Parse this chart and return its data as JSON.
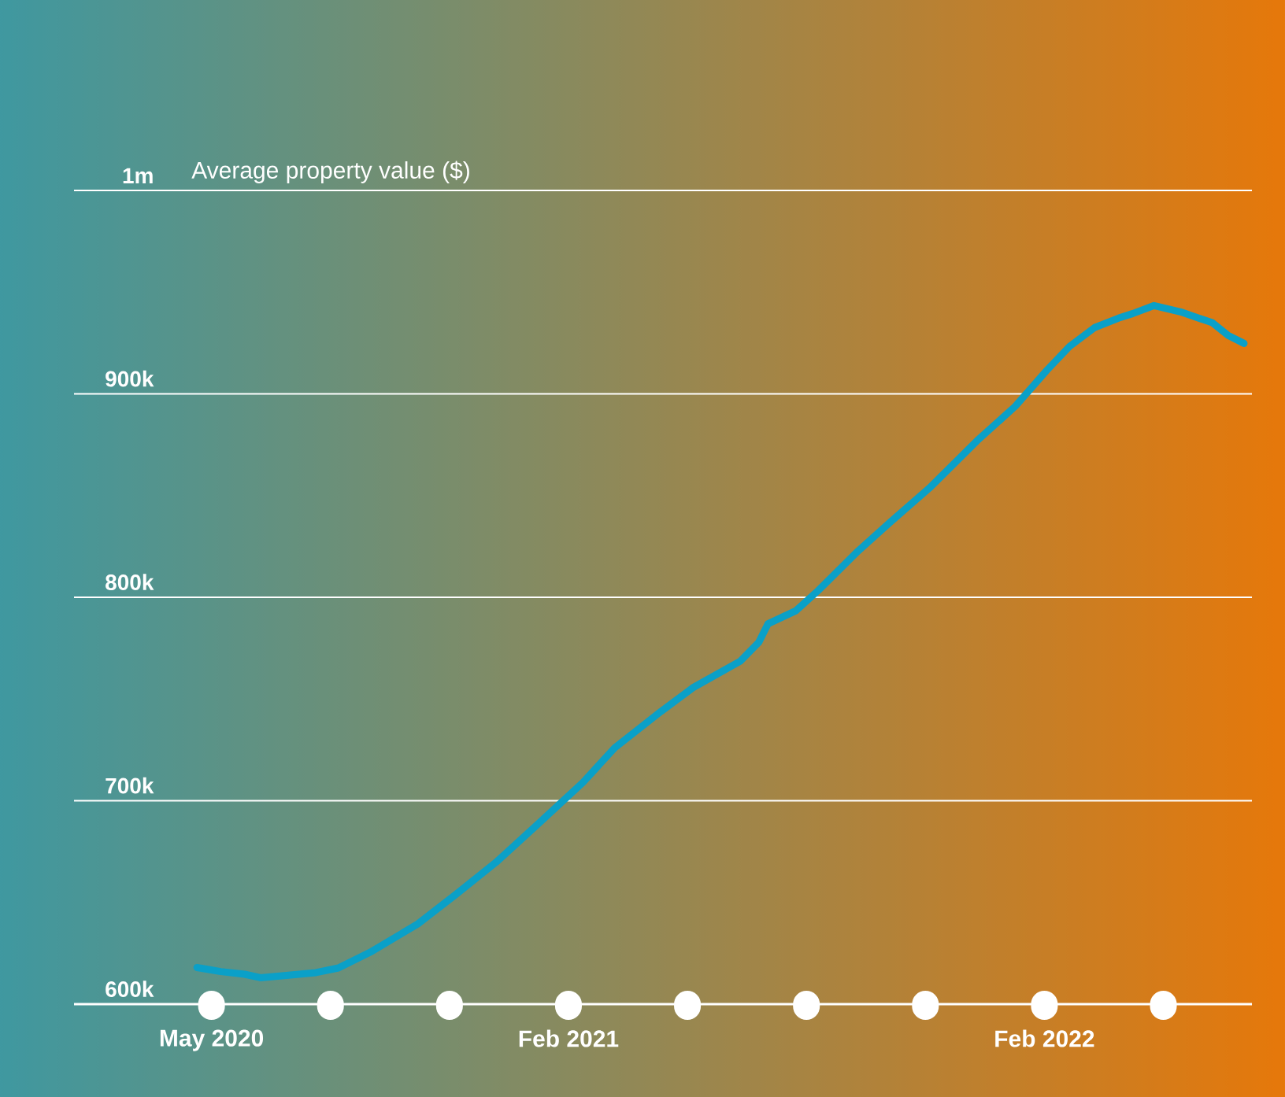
{
  "chart_data": {
    "type": "line",
    "ylabel": "Average property value ($)",
    "x": [
      "2020-04-20",
      "2020-05-08",
      "2020-05-26",
      "2020-06-08",
      "2020-06-26",
      "2020-07-20",
      "2020-08-07",
      "2020-09-01",
      "2020-10-07",
      "2020-11-06",
      "2020-12-06",
      "2021-01-06",
      "2021-02-12",
      "2021-03-06",
      "2021-04-11",
      "2021-05-05",
      "2021-06-11",
      "2021-06-25",
      "2021-07-02",
      "2021-07-23",
      "2021-08-10",
      "2021-09-10",
      "2021-10-04",
      "2021-11-04",
      "2021-12-10",
      "2022-01-09",
      "2022-02-03",
      "2022-02-20",
      "2022-03-09",
      "2022-03-27",
      "2022-04-08",
      "2022-04-24",
      "2022-05-14",
      "2022-06-08",
      "2022-06-20",
      "2022-07-02"
    ],
    "series": [
      {
        "color": "#0aa0c8",
        "values": [
          618000,
          616000,
          614700,
          613000,
          614000,
          615500,
          617800,
          625500,
          639400,
          654000,
          669600,
          687400,
          709000,
          726000,
          743900,
          755500,
          768600,
          777900,
          787000,
          793400,
          803400,
          822700,
          836700,
          853700,
          876900,
          893900,
          911700,
          923300,
          932600,
          937200,
          939500,
          943400,
          940300,
          935000,
          928700,
          924800
        ]
      }
    ],
    "xlim": [
      "2020-01-17",
      "2022-07-08"
    ],
    "xticks": [
      {
        "value": "2020-05-01",
        "label": "May 2020"
      },
      {
        "value": "2020-08-01",
        "label": null
      },
      {
        "value": "2020-11-01",
        "label": null
      },
      {
        "value": "2021-02-01",
        "label": "Feb 2021"
      },
      {
        "value": "2021-05-01",
        "label": null
      },
      {
        "value": "2021-08-01",
        "label": null
      },
      {
        "value": "2021-11-01",
        "label": null
      },
      {
        "value": "2022-02-01",
        "label": "Feb 2022"
      },
      {
        "value": "2022-05-01",
        "label": null
      }
    ],
    "ylim": [
      600000,
      1000000
    ],
    "yticks": [
      {
        "value": 600000,
        "label": "600k"
      },
      {
        "value": 700000,
        "label": "700k"
      },
      {
        "value": 800000,
        "label": "800k"
      },
      {
        "value": 900000,
        "label": "900k"
      },
      {
        "value": 1000000,
        "label": "1m"
      }
    ],
    "grid": "y",
    "marker": "none",
    "line_style": "solid"
  }
}
